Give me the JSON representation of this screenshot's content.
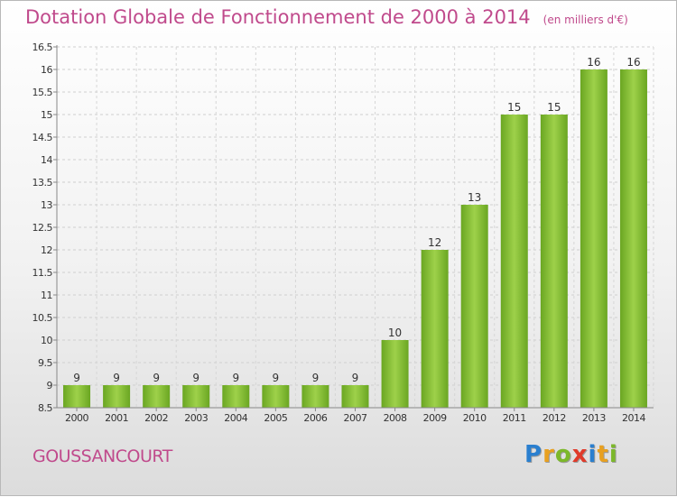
{
  "title": "Dotation Globale de Fonctionnement de 2000 à 2014",
  "unit": "(en milliers d'€)",
  "commune": "GOUSSANCOURT",
  "logo": {
    "letters": [
      {
        "ch": "P",
        "color": "#2a7fcf"
      },
      {
        "ch": "r",
        "color": "#e8a020"
      },
      {
        "ch": "o",
        "color": "#7cb82a"
      },
      {
        "ch": "x",
        "color": "#e03a2a"
      },
      {
        "ch": "i",
        "color": "#2a7fcf"
      },
      {
        "ch": "t",
        "color": "#e8a020"
      },
      {
        "ch": "i",
        "color": "#7cb82a"
      }
    ]
  },
  "chart_data": {
    "type": "bar",
    "categories": [
      "2000",
      "2001",
      "2002",
      "2003",
      "2004",
      "2005",
      "2006",
      "2007",
      "2008",
      "2009",
      "2010",
      "2011",
      "2012",
      "2013",
      "2014"
    ],
    "values": [
      9,
      9,
      9,
      9,
      9,
      9,
      9,
      9,
      10,
      12,
      13,
      15,
      15,
      16,
      16
    ],
    "ylim": [
      8.5,
      16.5
    ],
    "yticks": [
      8.5,
      9,
      9.5,
      10,
      10.5,
      11,
      11.5,
      12,
      12.5,
      13,
      13.5,
      14,
      14.5,
      15,
      15.5,
      16,
      16.5
    ],
    "ytick_labels": [
      "8.5",
      "9",
      "9.5",
      "10",
      "10.5",
      "11",
      "11.5",
      "12",
      "12.5",
      "13",
      "13.5",
      "14",
      "14.5",
      "15",
      "15.5",
      "16",
      "16.5"
    ],
    "grid": true,
    "bar_color": "#7cb82a"
  }
}
